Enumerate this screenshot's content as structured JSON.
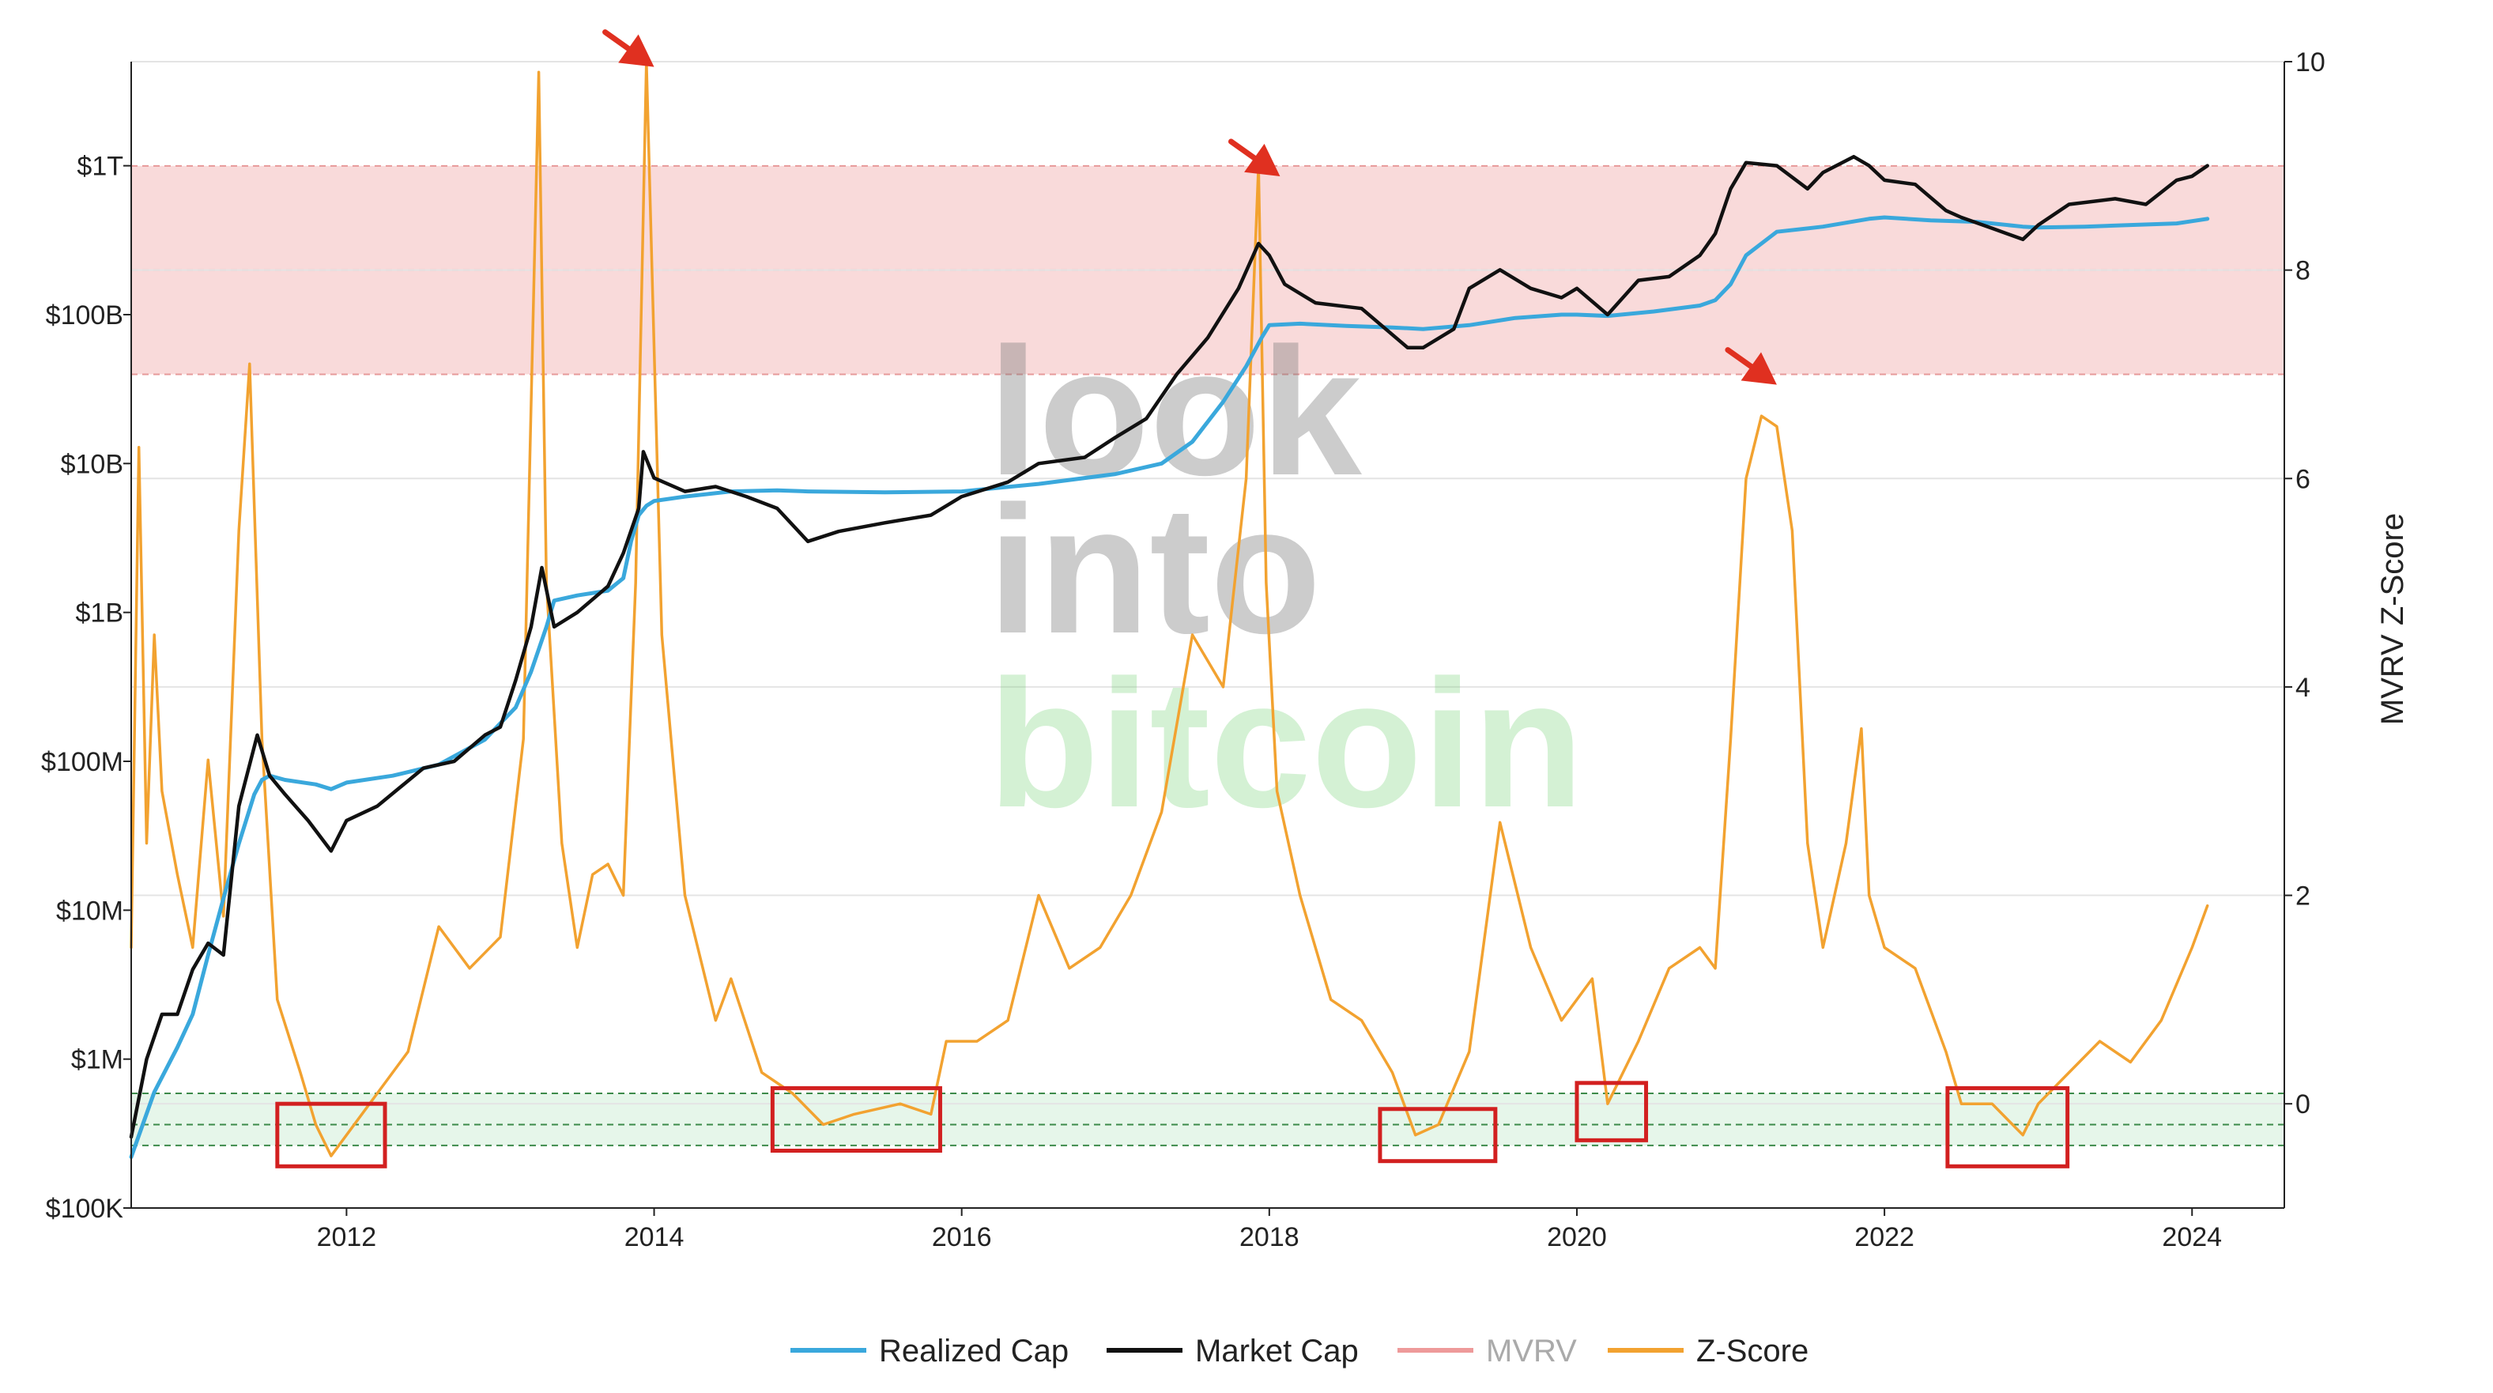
{
  "colors": {
    "realized_cap": "#3aa8dc",
    "market_cap": "#111111",
    "mvrv": "#ee9a9a",
    "zscore": "#f2a230",
    "red_band_fill": "#f9dada",
    "red_band_line": "#e79a9a",
    "green_band_fill": "#e6f6ea",
    "green_band_line": "#3c8a4a",
    "box": "#d22020",
    "arrow": "#e03020",
    "grid": "#e4e4e4",
    "axis": "#222222"
  },
  "watermark": {
    "line1": "look",
    "line2": "into",
    "line3": "bitcoin"
  },
  "legend": [
    {
      "key": "realized_cap",
      "label": "Realized Cap",
      "active": true
    },
    {
      "key": "market_cap",
      "label": "Market Cap",
      "active": true
    },
    {
      "key": "mvrv",
      "label": "MVRV",
      "active": false
    },
    {
      "key": "zscore",
      "label": "Z-Score",
      "active": true
    }
  ],
  "chart_data": {
    "type": "line",
    "title": "",
    "xlabel": "",
    "ylabel_left": "",
    "ylabel_right": "MVRV Z-Score",
    "x_range": [
      2010.6,
      2024.6
    ],
    "x_ticks": [
      2012,
      2014,
      2016,
      2018,
      2020,
      2022,
      2024
    ],
    "x_tick_labels": [
      "2012",
      "2014",
      "2016",
      "2018",
      "2020",
      "2022",
      "2024"
    ],
    "left_axis": {
      "scale": "log",
      "range": [
        100000,
        5000000000000
      ],
      "ticks": [
        100000,
        1000000,
        10000000,
        100000000,
        1000000000,
        10000000000,
        100000000000,
        1000000000000
      ],
      "tick_labels": [
        "$100K",
        "$1M",
        "$10M",
        "$100M",
        "$1B",
        "$10B",
        "$100B",
        "$1T"
      ]
    },
    "right_axis": {
      "scale": "linear",
      "range": [
        -1,
        10
      ],
      "ticks": [
        0,
        2,
        4,
        6,
        8,
        10
      ],
      "tick_labels": [
        "0",
        "2",
        "4",
        "6",
        "8",
        "10"
      ]
    },
    "grid": true,
    "legend_position": "bottom",
    "zones": [
      {
        "name": "overvalued",
        "axis": "right",
        "from": 7,
        "to": 9,
        "mid_line": 8
      },
      {
        "name": "undervalued",
        "axis": "right",
        "from": -0.4,
        "to": 0.1,
        "mid_line": -0.2
      }
    ],
    "series": [
      {
        "name": "Realized Cap",
        "axis": "left",
        "x": [
          2010.6,
          2010.75,
          2010.9,
          2011.0,
          2011.1,
          2011.2,
          2011.3,
          2011.4,
          2011.45,
          2011.5,
          2011.6,
          2011.8,
          2011.9,
          2012.0,
          2012.3,
          2012.6,
          2012.9,
          2013.0,
          2013.1,
          2013.2,
          2013.3,
          2013.35,
          2013.5,
          2013.7,
          2013.8,
          2013.85,
          2013.9,
          2013.95,
          2014.0,
          2014.2,
          2014.5,
          2014.8,
          2015.0,
          2015.5,
          2016.0,
          2016.5,
          2017.0,
          2017.3,
          2017.5,
          2017.7,
          2017.85,
          2017.95,
          2018.0,
          2018.2,
          2018.5,
          2018.8,
          2019.0,
          2019.3,
          2019.6,
          2019.9,
          2020.0,
          2020.2,
          2020.5,
          2020.8,
          2020.9,
          2021.0,
          2021.1,
          2021.3,
          2021.6,
          2021.9,
          2022.0,
          2022.3,
          2022.6,
          2022.9,
          2023.0,
          2023.3,
          2023.6,
          2023.9,
          2024.1
        ],
        "values": [
          220000,
          600000,
          1200000,
          2000000,
          5000000,
          12000000,
          28000000,
          60000000,
          75000000,
          80000000,
          75000000,
          70000000,
          65000000,
          72000000,
          80000000,
          95000000,
          140000000,
          180000000,
          230000000,
          400000000,
          800000000,
          1200000000,
          1300000000,
          1400000000,
          1700000000,
          3000000000,
          4500000000,
          5200000000,
          5600000000,
          6000000000,
          6500000000,
          6600000000,
          6500000000,
          6400000000,
          6500000000,
          7300000000,
          8500000000,
          10000000000,
          14000000000,
          26000000000,
          45000000000,
          70000000000,
          85000000000,
          87000000000,
          84000000000,
          82000000000,
          80000000000,
          85000000000,
          95000000000,
          100000000000,
          100000000000,
          98000000000,
          105000000000,
          115000000000,
          125000000000,
          160000000000,
          250000000000,
          360000000000,
          390000000000,
          440000000000,
          450000000000,
          430000000000,
          420000000000,
          390000000000,
          385000000000,
          390000000000,
          400000000000,
          410000000000,
          440000000000
        ]
      },
      {
        "name": "Market Cap",
        "axis": "left",
        "x": [
          2010.6,
          2010.7,
          2010.8,
          2010.9,
          2011.0,
          2011.1,
          2011.2,
          2011.3,
          2011.42,
          2011.5,
          2011.6,
          2011.75,
          2011.9,
          2012.0,
          2012.2,
          2012.5,
          2012.7,
          2012.9,
          2013.0,
          2013.1,
          2013.2,
          2013.27,
          2013.35,
          2013.5,
          2013.7,
          2013.8,
          2013.9,
          2013.93,
          2014.0,
          2014.2,
          2014.4,
          2014.6,
          2014.8,
          2015.0,
          2015.2,
          2015.5,
          2015.8,
          2016.0,
          2016.3,
          2016.5,
          2016.8,
          2017.0,
          2017.2,
          2017.4,
          2017.6,
          2017.8,
          2017.93,
          2018.0,
          2018.1,
          2018.3,
          2018.6,
          2018.9,
          2019.0,
          2019.2,
          2019.3,
          2019.5,
          2019.7,
          2019.9,
          2020.0,
          2020.2,
          2020.4,
          2020.6,
          2020.8,
          2020.9,
          2021.0,
          2021.1,
          2021.3,
          2021.5,
          2021.6,
          2021.8,
          2021.9,
          2022.0,
          2022.2,
          2022.4,
          2022.5,
          2022.7,
          2022.9,
          2023.0,
          2023.2,
          2023.5,
          2023.7,
          2023.9,
          2024.0,
          2024.1
        ],
        "values": [
          300000,
          1000000,
          2000000,
          2000000,
          4000000,
          6000000,
          5000000,
          50000000,
          150000000,
          80000000,
          60000000,
          40000000,
          25000000,
          40000000,
          50000000,
          90000000,
          100000000,
          150000000,
          170000000,
          350000000,
          800000000,
          2000000000,
          800000000,
          1000000000,
          1500000000,
          2500000000,
          5000000000,
          12000000000,
          8000000000,
          6500000000,
          7000000000,
          6000000000,
          5000000000,
          3000000000,
          3500000000,
          4000000000,
          4500000000,
          6000000000,
          7500000000,
          10000000000,
          11000000000,
          15000000000,
          20000000000,
          40000000000,
          70000000000,
          150000000000,
          300000000000,
          250000000000,
          160000000000,
          120000000000,
          110000000000,
          60000000000,
          60000000000,
          80000000000,
          150000000000,
          200000000000,
          150000000000,
          130000000000,
          150000000000,
          100000000000,
          170000000000,
          180000000000,
          250000000000,
          350000000000,
          700000000000,
          1050000000000,
          1000000000000,
          700000000000,
          900000000000,
          1150000000000,
          1000000000000,
          800000000000,
          750000000000,
          500000000000,
          450000000000,
          380000000000,
          320000000000,
          400000000000,
          550000000000,
          600000000000,
          550000000000,
          800000000000,
          850000000000,
          1000000000000
        ]
      },
      {
        "name": "Z-Score",
        "axis": "right",
        "x": [
          2010.6,
          2010.65,
          2010.7,
          2010.75,
          2010.8,
          2010.9,
          2011.0,
          2011.1,
          2011.2,
          2011.3,
          2011.37,
          2011.45,
          2011.55,
          2011.7,
          2011.8,
          2011.9,
          2012.0,
          2012.2,
          2012.4,
          2012.6,
          2012.8,
          2013.0,
          2013.15,
          2013.25,
          2013.3,
          2013.4,
          2013.5,
          2013.6,
          2013.7,
          2013.8,
          2013.88,
          2013.95,
          2014.05,
          2014.2,
          2014.4,
          2014.5,
          2014.7,
          2014.9,
          2015.1,
          2015.3,
          2015.6,
          2015.8,
          2015.9,
          2016.1,
          2016.3,
          2016.5,
          2016.7,
          2016.9,
          2017.1,
          2017.3,
          2017.5,
          2017.7,
          2017.85,
          2017.93,
          2017.98,
          2018.05,
          2018.2,
          2018.4,
          2018.6,
          2018.8,
          2018.95,
          2019.1,
          2019.3,
          2019.5,
          2019.7,
          2019.9,
          2020.1,
          2020.2,
          2020.4,
          2020.6,
          2020.8,
          2020.9,
          2021.0,
          2021.1,
          2021.2,
          2021.3,
          2021.4,
          2021.5,
          2021.6,
          2021.75,
          2021.85,
          2021.9,
          2022.0,
          2022.2,
          2022.4,
          2022.5,
          2022.7,
          2022.9,
          2023.0,
          2023.2,
          2023.4,
          2023.6,
          2023.8,
          2024.0,
          2024.1
        ],
        "values": [
          1.5,
          6.3,
          2.5,
          4.5,
          3.0,
          2.2,
          1.5,
          3.3,
          1.8,
          5.5,
          7.1,
          3.5,
          1.0,
          0.3,
          -0.2,
          -0.5,
          -0.3,
          0.1,
          0.5,
          1.7,
          1.3,
          1.6,
          3.5,
          9.9,
          5.0,
          2.5,
          1.5,
          2.2,
          2.3,
          2.0,
          5.0,
          10.0,
          4.5,
          2.0,
          0.8,
          1.2,
          0.3,
          0.1,
          -0.2,
          -0.1,
          0.0,
          -0.1,
          0.6,
          0.6,
          0.8,
          2.0,
          1.3,
          1.5,
          2.0,
          2.8,
          4.5,
          4.0,
          6.0,
          9.0,
          5.0,
          3.0,
          2.0,
          1.0,
          0.8,
          0.3,
          -0.3,
          -0.2,
          0.5,
          2.7,
          1.5,
          0.8,
          1.2,
          0.0,
          0.6,
          1.3,
          1.5,
          1.3,
          3.5,
          6.0,
          6.6,
          6.5,
          5.5,
          2.5,
          1.5,
          2.5,
          3.6,
          2.0,
          1.5,
          1.3,
          0.5,
          0.0,
          0.0,
          -0.3,
          0.0,
          0.3,
          0.6,
          0.4,
          0.8,
          1.5,
          1.9
        ]
      }
    ],
    "annotations": [
      {
        "type": "box",
        "x": [
          2011.55,
          2012.25
        ],
        "y": [
          -0.6,
          0.0
        ]
      },
      {
        "type": "box",
        "x": [
          2014.77,
          2015.86
        ],
        "y": [
          -0.45,
          0.15
        ]
      },
      {
        "type": "box",
        "x": [
          2018.72,
          2019.47
        ],
        "y": [
          -0.55,
          -0.05
        ]
      },
      {
        "type": "box",
        "x": [
          2020.0,
          2020.45
        ],
        "y": [
          -0.35,
          0.2
        ]
      },
      {
        "type": "box",
        "x": [
          2022.41,
          2023.19
        ],
        "y": [
          -0.6,
          0.15
        ]
      },
      {
        "type": "arrow",
        "target_x": 2014.0,
        "target_y": 9.95
      },
      {
        "type": "arrow",
        "target_x": 2018.07,
        "target_y": 8.9
      },
      {
        "type": "arrow",
        "target_x": 2021.3,
        "target_y": 6.9
      }
    ]
  }
}
